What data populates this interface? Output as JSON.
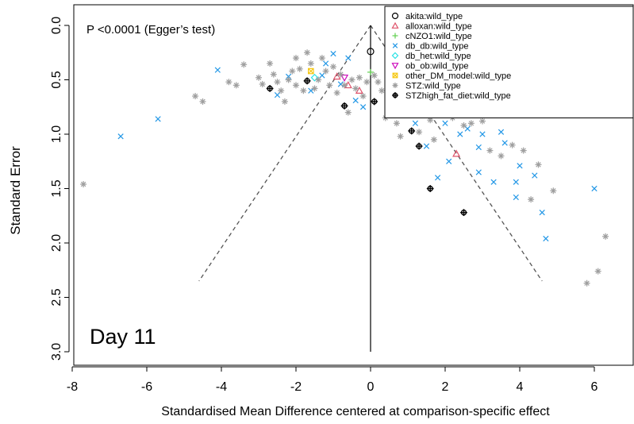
{
  "chart_data": {
    "type": "scatter",
    "title": "",
    "annotation": "P <0.0001 (Egger’s test)",
    "panel_label": "Day 11",
    "xlabel": "Standardised Mean Difference centered at comparison-specific effect",
    "ylabel": "Standard Error",
    "xlim": [
      -8.1,
      7.0
    ],
    "ylim": [
      0.0,
      3.0
    ],
    "y_reversed": true,
    "xticks": [
      -8,
      -6,
      -4,
      -2,
      0,
      2,
      4,
      6
    ],
    "yticks": [
      0.0,
      0.5,
      1.0,
      1.5,
      2.0,
      2.5,
      3.0
    ],
    "xtick_labels": [
      "-8",
      "-6",
      "-4",
      "-2",
      "0",
      "2",
      "4",
      "6"
    ],
    "ytick_labels": [
      "0.0",
      "0.5",
      "1.0",
      "1.5",
      "2.0",
      "2.5",
      "3.0"
    ],
    "grid": false,
    "legend_position": "top-right",
    "reference_line": {
      "x": 0,
      "y_from": 0.0,
      "y_to": 3.0
    },
    "funnel_lines": [
      {
        "points": [
          [
            0,
            0.0
          ],
          [
            -4.6,
            2.35
          ]
        ]
      },
      {
        "points": [
          [
            0,
            0.0
          ],
          [
            4.6,
            2.35
          ]
        ]
      }
    ],
    "series": [
      {
        "name": "akita:wild_type",
        "marker": "circle",
        "color": "#000000",
        "points": [
          [
            0.0,
            0.24
          ]
        ]
      },
      {
        "name": "alloxan:wild_type",
        "marker": "triangle-up",
        "color": "#df536b",
        "points": [
          [
            -0.3,
            0.6
          ],
          [
            -0.6,
            0.55
          ],
          [
            -0.9,
            0.47
          ],
          [
            2.3,
            1.18
          ]
        ]
      },
      {
        "name": "cNZO1:wild_type",
        "marker": "plus",
        "color": "#61d04f",
        "points": [
          [
            0.0,
            0.43
          ]
        ]
      },
      {
        "name": "db_db:wild_type",
        "marker": "x",
        "color": "#2297e6",
        "points": [
          [
            -6.7,
            1.02
          ],
          [
            -5.7,
            0.86
          ],
          [
            -4.1,
            0.41
          ],
          [
            -2.5,
            0.64
          ],
          [
            -2.2,
            0.47
          ],
          [
            -1.6,
            0.6
          ],
          [
            -1.3,
            0.46
          ],
          [
            -1.2,
            0.35
          ],
          [
            -1.0,
            0.26
          ],
          [
            -0.8,
            0.54
          ],
          [
            -0.6,
            0.3
          ],
          [
            -0.4,
            0.69
          ],
          [
            -0.2,
            0.75
          ],
          [
            0.6,
            0.5
          ],
          [
            0.8,
            0.6
          ],
          [
            1.0,
            0.55
          ],
          [
            1.2,
            0.9
          ],
          [
            1.5,
            1.11
          ],
          [
            1.8,
            1.4
          ],
          [
            2.0,
            0.9
          ],
          [
            2.1,
            1.25
          ],
          [
            2.4,
            1.0
          ],
          [
            2.6,
            0.95
          ],
          [
            2.9,
            1.35
          ],
          [
            2.9,
            1.12
          ],
          [
            3.0,
            1.0
          ],
          [
            3.3,
            1.44
          ],
          [
            3.5,
            0.98
          ],
          [
            3.6,
            1.08
          ],
          [
            3.9,
            1.44
          ],
          [
            3.9,
            1.58
          ],
          [
            4.0,
            1.29
          ],
          [
            4.4,
            1.38
          ],
          [
            4.6,
            1.72
          ],
          [
            4.7,
            1.96
          ],
          [
            6.0,
            1.5
          ]
        ]
      },
      {
        "name": "db_het:wild_type",
        "marker": "diamond",
        "color": "#28e2e5",
        "points": [
          [
            -1.5,
            0.48
          ]
        ]
      },
      {
        "name": "ob_ob:wild_type",
        "marker": "triangle-down",
        "color": "#cd0bbc",
        "points": [
          [
            -0.7,
            0.48
          ]
        ]
      },
      {
        "name": "other_DM_model:wild_type",
        "marker": "square-x",
        "color": "#f5c710",
        "points": [
          [
            -1.6,
            0.42
          ]
        ]
      },
      {
        "name": "STZ:wild_type",
        "marker": "asterisk",
        "color": "#9e9e9e",
        "points": [
          [
            -7.7,
            1.46
          ],
          [
            -4.7,
            0.65
          ],
          [
            -4.5,
            0.7
          ],
          [
            -3.8,
            0.52
          ],
          [
            -3.6,
            0.55
          ],
          [
            -3.4,
            0.36
          ],
          [
            -3.0,
            0.48
          ],
          [
            -2.9,
            0.54
          ],
          [
            -2.7,
            0.35
          ],
          [
            -2.6,
            0.45
          ],
          [
            -2.5,
            0.52
          ],
          [
            -2.4,
            0.6
          ],
          [
            -2.3,
            0.7
          ],
          [
            -2.2,
            0.5
          ],
          [
            -2.1,
            0.42
          ],
          [
            -2.0,
            0.3
          ],
          [
            -2.0,
            0.55
          ],
          [
            -1.9,
            0.4
          ],
          [
            -1.8,
            0.6
          ],
          [
            -1.7,
            0.25
          ],
          [
            -1.6,
            0.35
          ],
          [
            -1.5,
            0.58
          ],
          [
            -1.4,
            0.5
          ],
          [
            -1.3,
            0.3
          ],
          [
            -1.2,
            0.42
          ],
          [
            -1.1,
            0.55
          ],
          [
            -1.0,
            0.38
          ],
          [
            -0.9,
            0.62
          ],
          [
            -0.8,
            0.45
          ],
          [
            -0.7,
            0.55
          ],
          [
            -0.6,
            0.8
          ],
          [
            -0.5,
            0.5
          ],
          [
            -0.4,
            0.58
          ],
          [
            -0.3,
            0.48
          ],
          [
            -0.2,
            0.65
          ],
          [
            -0.1,
            0.52
          ],
          [
            0.1,
            0.46
          ],
          [
            0.2,
            0.52
          ],
          [
            0.3,
            0.6
          ],
          [
            0.4,
            0.85
          ],
          [
            0.5,
            0.5
          ],
          [
            0.6,
            0.42
          ],
          [
            0.7,
            0.9
          ],
          [
            0.8,
            1.02
          ],
          [
            1.0,
            0.72
          ],
          [
            1.1,
            0.62
          ],
          [
            1.3,
            0.98
          ],
          [
            1.4,
            0.8
          ],
          [
            1.6,
            0.87
          ],
          [
            1.7,
            1.05
          ],
          [
            2.0,
            0.76
          ],
          [
            2.2,
            0.85
          ],
          [
            2.5,
            0.92
          ],
          [
            2.7,
            0.9
          ],
          [
            3.0,
            0.88
          ],
          [
            3.2,
            1.15
          ],
          [
            3.5,
            1.2
          ],
          [
            3.8,
            1.1
          ],
          [
            4.1,
            1.15
          ],
          [
            4.3,
            1.6
          ],
          [
            4.5,
            1.28
          ],
          [
            4.9,
            1.52
          ],
          [
            5.8,
            2.37
          ],
          [
            6.1,
            2.26
          ],
          [
            6.3,
            1.94
          ]
        ]
      },
      {
        "name": "STZhigh_fat_diet:wild_type",
        "marker": "crossed-circle",
        "color": "#000000",
        "points": [
          [
            -2.7,
            0.58
          ],
          [
            -1.7,
            0.51
          ],
          [
            -0.7,
            0.74
          ],
          [
            0.1,
            0.7
          ],
          [
            1.1,
            0.97
          ],
          [
            1.6,
            1.5
          ],
          [
            2.5,
            1.72
          ],
          [
            1.3,
            1.11
          ]
        ]
      }
    ]
  }
}
